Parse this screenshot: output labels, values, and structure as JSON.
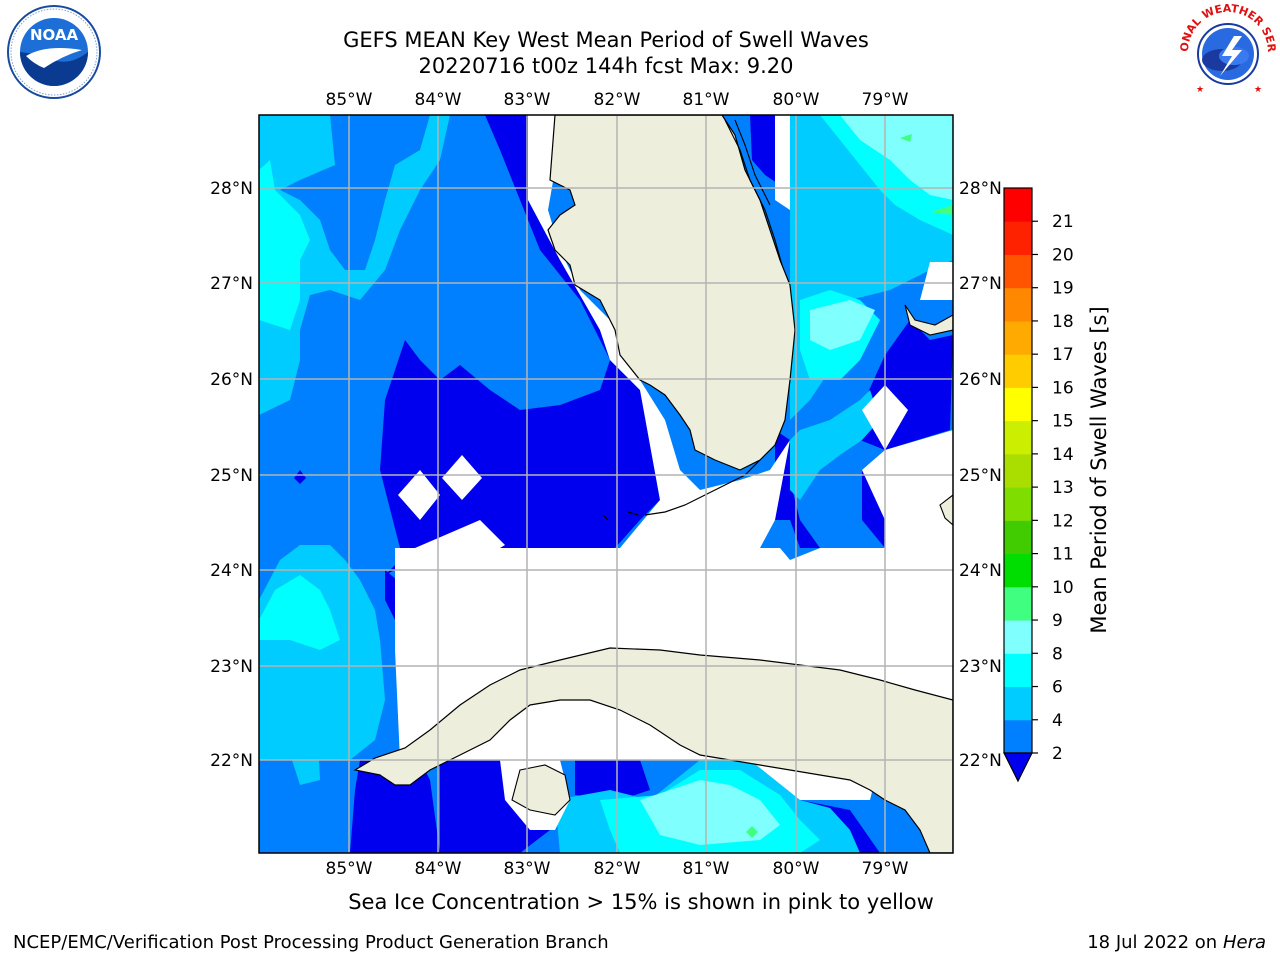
{
  "header": {
    "title_line1": "GEFS MEAN Key West Mean Period of Swell Waves",
    "title_line2": "20220716 t00z 144h fcst   Max: 9.20"
  },
  "logos": {
    "left": "noaa-logo",
    "right": "nws-logo",
    "noaa_text": "NOAA",
    "nws_ring_text": "NATIONAL WEATHER SERVICE"
  },
  "map": {
    "lon_labels": [
      "85°W",
      "84°W",
      "83°W",
      "82°W",
      "81°W",
      "80°W",
      "79°W"
    ],
    "lat_labels": [
      "28°N",
      "27°N",
      "26°N",
      "25°N",
      "24°N",
      "23°N",
      "22°N"
    ],
    "land_color": "#eeeedd",
    "coast_color": "#000000",
    "grid_color": "#b4b4b4"
  },
  "colorbar": {
    "label": "Mean Period of Swell Waves [s]",
    "ticks": [
      "2",
      "4",
      "6",
      "8",
      "9",
      "10",
      "11",
      "12",
      "13",
      "14",
      "15",
      "16",
      "17",
      "18",
      "19",
      "20",
      "21"
    ],
    "colors": [
      "#0000ee",
      "#0080ff",
      "#00ccff",
      "#00ffff",
      "#80ffff",
      "#40ff80",
      "#00dd00",
      "#40cc00",
      "#80dd00",
      "#aadd00",
      "#ccee00",
      "#ffff00",
      "#ffcc00",
      "#ffaa00",
      "#ff8800",
      "#ff5500",
      "#ff2200",
      "#ff0000"
    ]
  },
  "footer": {
    "note": "Sea Ice Concentration > 15% is shown in pink to yellow",
    "credit_left": "NCEP/EMC/Verification Post Processing Product Generation Branch",
    "credit_date": "18 Jul 2022 on ",
    "credit_host": "Hera"
  }
}
